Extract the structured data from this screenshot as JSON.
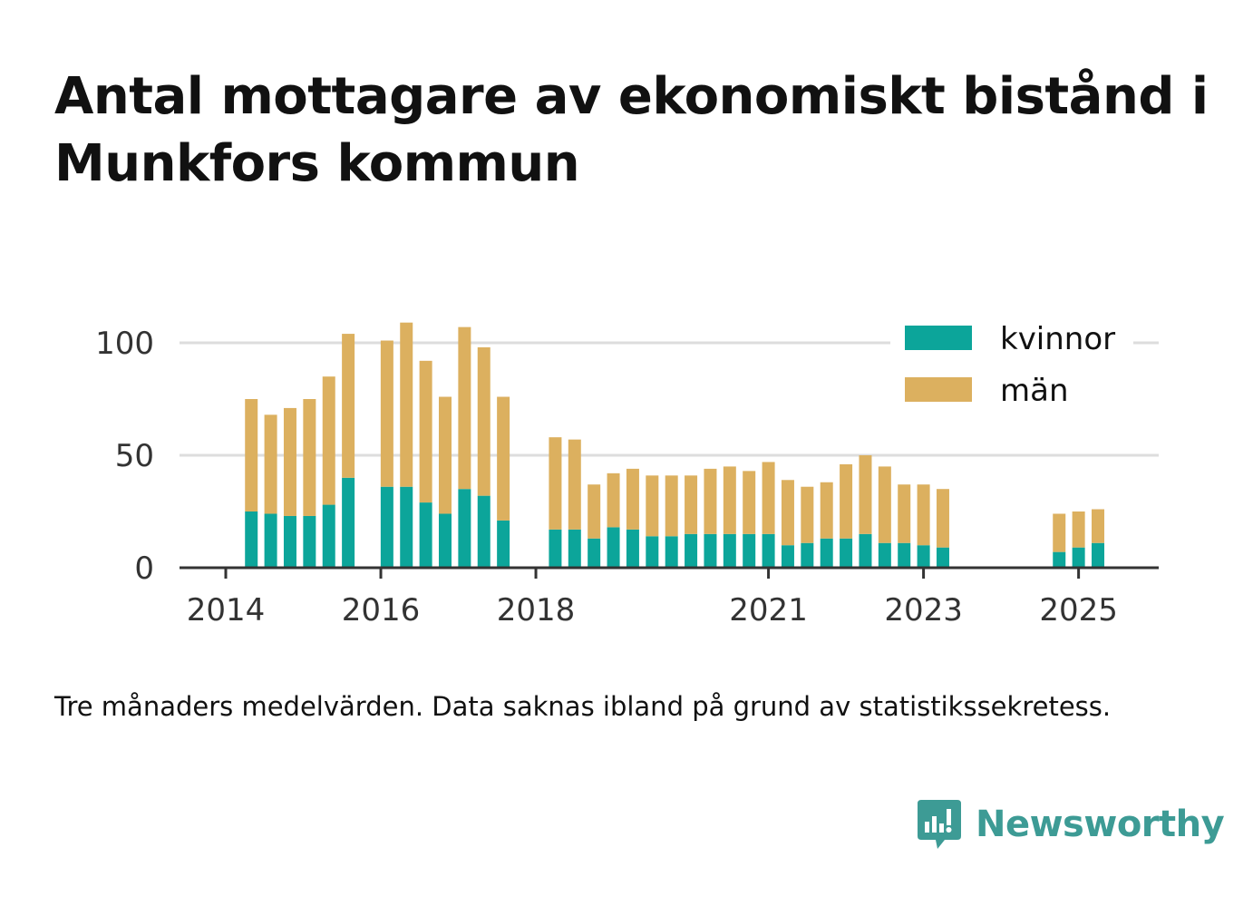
{
  "title": "Antal mottagare av ekonomiskt bistånd i Munkfors kommun",
  "caption": "Tre månaders medelvärden. Data saknas ibland på grund av statistikssekretess.",
  "brand": {
    "name": "Newsworthy",
    "color": "#3d9b95",
    "icon": "newsworthy-logo-icon"
  },
  "colors": {
    "kvinnor": "#0ca59a",
    "man": "#dcb05f",
    "grid": "#dddddd",
    "axis": "#333333"
  },
  "chart_data": {
    "type": "bar",
    "stacked": true,
    "xlabel": "",
    "ylabel": "",
    "ylim": [
      0,
      110
    ],
    "yticks": [
      0,
      50,
      100
    ],
    "xticks": [
      2014,
      2016,
      2018,
      2021,
      2023,
      2025
    ],
    "xlim": [
      2014.0,
      2025.75
    ],
    "grid": true,
    "legend_position": "top-right",
    "x": [
      2014.33,
      2014.58,
      2014.83,
      2015.08,
      2015.33,
      2015.58,
      2016.08,
      2016.33,
      2016.58,
      2016.83,
      2017.08,
      2017.33,
      2017.58,
      2018.25,
      2018.5,
      2018.75,
      2019.0,
      2019.25,
      2019.5,
      2019.75,
      2020.0,
      2020.25,
      2020.5,
      2020.75,
      2021.0,
      2021.25,
      2021.5,
      2021.75,
      2022.0,
      2022.25,
      2022.5,
      2022.75,
      2023.0,
      2023.25,
      2024.75,
      2025.0,
      2025.25
    ],
    "series": [
      {
        "name": "kvinnor",
        "values": [
          25,
          24,
          23,
          23,
          28,
          40,
          36,
          36,
          29,
          24,
          35,
          32,
          21,
          17,
          17,
          13,
          18,
          17,
          14,
          14,
          15,
          15,
          15,
          15,
          15,
          10,
          11,
          13,
          13,
          15,
          11,
          11,
          10,
          9,
          7,
          9,
          11
        ]
      },
      {
        "name": "män",
        "values": [
          50,
          44,
          48,
          52,
          57,
          64,
          65,
          73,
          63,
          52,
          72,
          66,
          55,
          41,
          40,
          24,
          24,
          27,
          27,
          27,
          26,
          29,
          30,
          28,
          32,
          29,
          25,
          25,
          33,
          35,
          34,
          26,
          27,
          26,
          17,
          16,
          15
        ]
      }
    ]
  }
}
